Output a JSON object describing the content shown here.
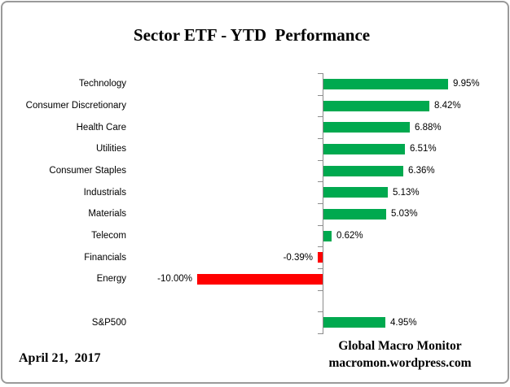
{
  "title": "Sector ETF - YTD  Performance",
  "date_label": "April 21,  2017",
  "footer": {
    "line1": "Global Macro Monitor",
    "line2": "macromon.wordpress.com"
  },
  "chart_data": {
    "type": "bar",
    "orientation": "horizontal",
    "title": "Sector ETF - YTD  Performance",
    "categories": [
      "Technology",
      "Consumer Discretionary",
      "Health Care",
      "Utilities",
      "Consumer Staples",
      "Industrials",
      "Materials",
      "Telecom",
      "Financials",
      "Energy",
      "",
      "S&P500"
    ],
    "values": [
      9.95,
      8.42,
      6.88,
      6.51,
      6.36,
      5.13,
      5.03,
      0.62,
      -0.39,
      -10.0,
      null,
      4.95
    ],
    "value_labels": [
      "9.95%",
      "8.42%",
      "6.88%",
      "6.51%",
      "6.36%",
      "5.13%",
      "5.03%",
      "0.62%",
      "-0.39%",
      "-10.00%",
      "",
      "4.95%"
    ],
    "positive_color": "#00A94F",
    "negative_color": "#FF0000",
    "axis_color": "#8C8C8C",
    "baseline": 0,
    "xlim": [
      -10.4,
      10.2
    ],
    "grid": false,
    "legend": false,
    "value_label_position": "outside-end"
  }
}
